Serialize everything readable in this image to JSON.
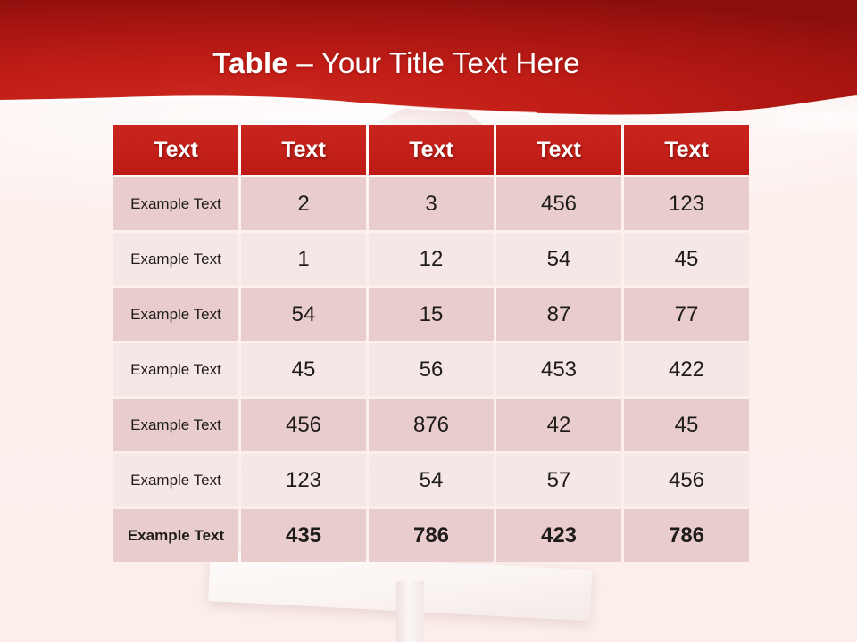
{
  "slide_title": {
    "keyword": "Table",
    "separator": "–",
    "text": "Your Title Text Here"
  },
  "table": {
    "headers": [
      "Text",
      "Text",
      "Text",
      "Text",
      "Text"
    ],
    "rows": [
      {
        "label": "Example Text",
        "values": [
          "2",
          "3",
          "456",
          "123"
        ],
        "variant": "dark",
        "bold": false
      },
      {
        "label": "Example Text",
        "values": [
          "1",
          "12",
          "54",
          "45"
        ],
        "variant": "light",
        "bold": false
      },
      {
        "label": "Example Text",
        "values": [
          "54",
          "15",
          "87",
          "77"
        ],
        "variant": "dark",
        "bold": false
      },
      {
        "label": "Example Text",
        "values": [
          "45",
          "56",
          "453",
          "422"
        ],
        "variant": "light",
        "bold": false
      },
      {
        "label": "Example Text",
        "values": [
          "456",
          "876",
          "42",
          "45"
        ],
        "variant": "dark",
        "bold": false
      },
      {
        "label": "Example Text",
        "values": [
          "123",
          "54",
          "57",
          "456"
        ],
        "variant": "light",
        "bold": false
      },
      {
        "label": "Example Text",
        "values": [
          "435",
          "786",
          "423",
          "786"
        ],
        "variant": "dark",
        "bold": true
      }
    ]
  },
  "colors": {
    "header_red": "#C2201A",
    "band_red_bright": "#CD2A21",
    "band_red_dark": "#8A0E0B",
    "row_dark": "#E8CDCC",
    "row_light": "#F5E7E6",
    "background": "#FBEEEB",
    "title_text": "#FFFFFF",
    "cell_text": "#1E1B1B"
  }
}
